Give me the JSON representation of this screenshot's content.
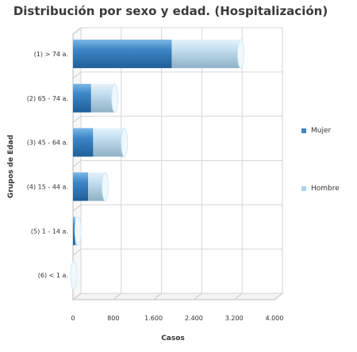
{
  "chart_data": {
    "type": "bar",
    "orientation": "horizontal",
    "stacked": true,
    "title": "Distribución por sexo y edad. (Hospitalización)",
    "xlabel": "Casos",
    "ylabel": "Grupos de Edad",
    "xlim": [
      0,
      4000
    ],
    "x_ticks": [
      "0",
      "800",
      "1.600",
      "2.400",
      "3.200",
      "4.000"
    ],
    "x_tick_values": [
      0,
      800,
      1600,
      2400,
      3200,
      4000
    ],
    "grid": true,
    "legend_position": "right",
    "categories": [
      "(1) > 74 a.",
      "(2) 65 - 74 a.",
      "(3) 45 - 64 a.",
      "(4) 15 - 44 a.",
      "(5) 1 - 14 a.",
      "(6) < 1 a."
    ],
    "series": [
      {
        "name": "Mujer",
        "color": "#3d86c6",
        "values": [
          1960,
          360,
          400,
          300,
          40,
          5
        ]
      },
      {
        "name": "Hombre",
        "color": "#a8d3ee",
        "values": [
          1370,
          470,
          620,
          340,
          60,
          10
        ]
      }
    ]
  }
}
